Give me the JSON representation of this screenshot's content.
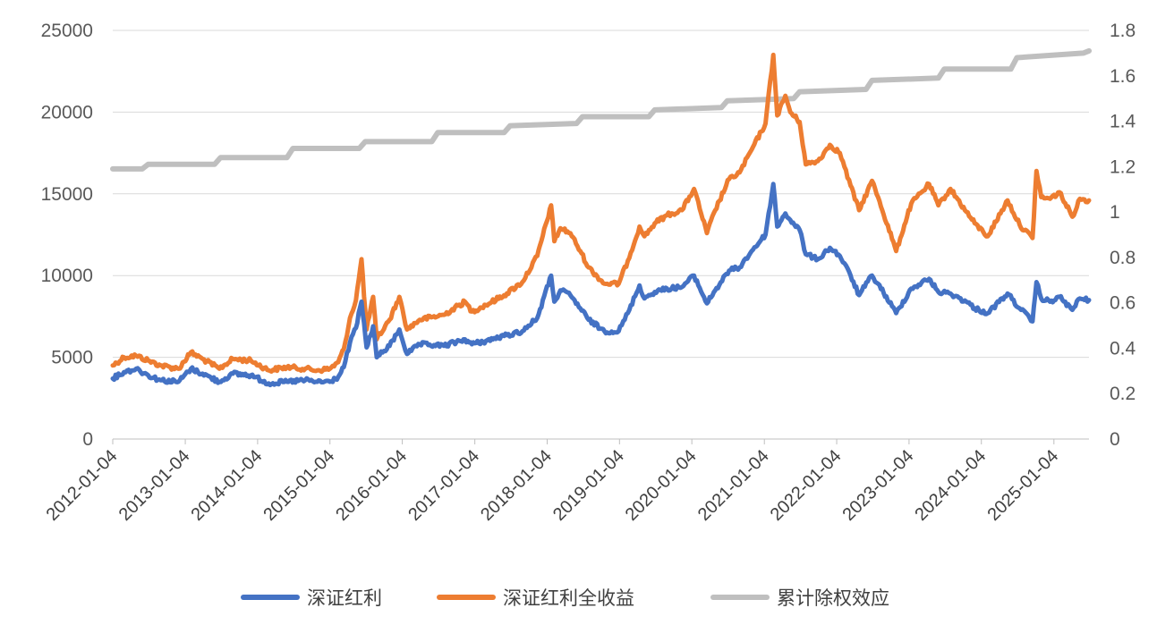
{
  "chart_data": {
    "type": "line",
    "title": "",
    "x_tick_labels": [
      "2012-01-04",
      "2013-01-04",
      "2014-01-04",
      "2015-01-04",
      "2016-01-04",
      "2017-01-04",
      "2018-01-04",
      "2019-01-04",
      "2020-01-04",
      "2021-01-04",
      "2022-01-04",
      "2023-01-04",
      "2024-01-04",
      "2025-01-04"
    ],
    "left_axis": {
      "ylim": [
        0,
        25000
      ],
      "ticks": [
        "0",
        "5000",
        "10000",
        "15000",
        "20000",
        "25000"
      ]
    },
    "right_axis": {
      "ylim": [
        0,
        1.8
      ],
      "ticks": [
        "0",
        "0.2",
        "0.4",
        "0.6",
        "0.8",
        "1",
        "1.2",
        "1.4",
        "1.6",
        "1.8"
      ]
    },
    "grid": "horizontal",
    "legend_position": "bottom",
    "series": [
      {
        "name": "深证红利",
        "color": "#4472C4",
        "axis": "left",
        "points": [
          [
            "2012-01-04",
            3700
          ],
          [
            "2012-03-01",
            4100
          ],
          [
            "2012-05-01",
            4300
          ],
          [
            "2012-07-01",
            3900
          ],
          [
            "2012-09-01",
            3600
          ],
          [
            "2012-12-01",
            3500
          ],
          [
            "2013-02-01",
            4300
          ],
          [
            "2013-04-01",
            4000
          ],
          [
            "2013-06-25",
            3500
          ],
          [
            "2013-09-01",
            4000
          ],
          [
            "2013-12-01",
            3900
          ],
          [
            "2014-03-01",
            3400
          ],
          [
            "2014-06-01",
            3500
          ],
          [
            "2014-09-01",
            3600
          ],
          [
            "2014-11-01",
            3500
          ],
          [
            "2015-01-04",
            3500
          ],
          [
            "2015-02-15",
            3800
          ],
          [
            "2015-03-15",
            4400
          ],
          [
            "2015-04-15",
            5900
          ],
          [
            "2015-05-15",
            6800
          ],
          [
            "2015-06-12",
            8400
          ],
          [
            "2015-07-08",
            5600
          ],
          [
            "2015-08-10",
            6900
          ],
          [
            "2015-08-28",
            5000
          ],
          [
            "2015-11-01",
            5700
          ],
          [
            "2015-12-20",
            6700
          ],
          [
            "2016-01-28",
            5200
          ],
          [
            "2016-04-01",
            5800
          ],
          [
            "2016-08-01",
            5700
          ],
          [
            "2016-11-15",
            6100
          ],
          [
            "2016-12-20",
            5800
          ],
          [
            "2017-03-01",
            6000
          ],
          [
            "2017-06-01",
            6300
          ],
          [
            "2017-09-01",
            6600
          ],
          [
            "2017-11-15",
            7400
          ],
          [
            "2018-01-24",
            10000
          ],
          [
            "2018-02-09",
            8400
          ],
          [
            "2018-03-12",
            9100
          ],
          [
            "2018-05-01",
            8800
          ],
          [
            "2018-06-20",
            8000
          ],
          [
            "2018-08-01",
            7300
          ],
          [
            "2018-10-20",
            6600
          ],
          [
            "2018-12-31",
            6600
          ],
          [
            "2019-02-15",
            7700
          ],
          [
            "2019-04-15",
            9400
          ],
          [
            "2019-05-10",
            8600
          ],
          [
            "2019-07-01",
            9000
          ],
          [
            "2019-09-01",
            9200
          ],
          [
            "2019-11-15",
            9300
          ],
          [
            "2020-01-15",
            10000
          ],
          [
            "2020-03-20",
            8300
          ],
          [
            "2020-05-01",
            9100
          ],
          [
            "2020-07-10",
            10300
          ],
          [
            "2020-09-01",
            10500
          ],
          [
            "2020-11-01",
            11500
          ],
          [
            "2021-01-10",
            12500
          ],
          [
            "2021-02-18",
            15600
          ],
          [
            "2021-03-10",
            13000
          ],
          [
            "2021-04-20",
            13800
          ],
          [
            "2021-05-15",
            13400
          ],
          [
            "2021-07-01",
            12800
          ],
          [
            "2021-08-01",
            11300
          ],
          [
            "2021-10-01",
            11000
          ],
          [
            "2021-12-01",
            11700
          ],
          [
            "2022-01-20",
            11200
          ],
          [
            "2022-03-15",
            10000
          ],
          [
            "2022-04-27",
            8800
          ],
          [
            "2022-07-01",
            10000
          ],
          [
            "2022-08-01",
            9500
          ],
          [
            "2022-10-31",
            7700
          ],
          [
            "2023-01-15",
            9200
          ],
          [
            "2023-04-15",
            9800
          ],
          [
            "2023-06-01",
            9000
          ],
          [
            "2023-08-01",
            8900
          ],
          [
            "2023-10-20",
            8400
          ],
          [
            "2023-12-01",
            8000
          ],
          [
            "2024-02-05",
            7700
          ],
          [
            "2024-05-15",
            8900
          ],
          [
            "2024-07-15",
            8000
          ],
          [
            "2024-09-18",
            7200
          ],
          [
            "2024-10-08",
            9600
          ],
          [
            "2024-11-01",
            8600
          ],
          [
            "2024-12-15",
            8400
          ],
          [
            "2025-02-01",
            8700
          ],
          [
            "2025-04-07",
            7900
          ],
          [
            "2025-05-15",
            8600
          ],
          [
            "2025-06-30",
            8500
          ]
        ]
      },
      {
        "name": "深证红利全收益",
        "color": "#ED7D31",
        "axis": "left",
        "points": [
          [
            "2012-01-04",
            4500
          ],
          [
            "2012-03-01",
            5000
          ],
          [
            "2012-05-01",
            5100
          ],
          [
            "2012-07-01",
            4800
          ],
          [
            "2012-09-01",
            4500
          ],
          [
            "2012-12-01",
            4300
          ],
          [
            "2013-02-01",
            5300
          ],
          [
            "2013-04-01",
            4900
          ],
          [
            "2013-06-25",
            4300
          ],
          [
            "2013-09-01",
            4900
          ],
          [
            "2013-12-01",
            4800
          ],
          [
            "2014-03-01",
            4200
          ],
          [
            "2014-06-01",
            4400
          ],
          [
            "2014-09-01",
            4300
          ],
          [
            "2014-11-01",
            4200
          ],
          [
            "2015-01-04",
            4300
          ],
          [
            "2015-02-15",
            4700
          ],
          [
            "2015-03-15",
            5500
          ],
          [
            "2015-04-15",
            7400
          ],
          [
            "2015-05-15",
            8500
          ],
          [
            "2015-06-12",
            11000
          ],
          [
            "2015-07-08",
            6700
          ],
          [
            "2015-08-10",
            8700
          ],
          [
            "2015-08-28",
            6100
          ],
          [
            "2015-11-01",
            7300
          ],
          [
            "2015-12-20",
            8700
          ],
          [
            "2016-01-28",
            6700
          ],
          [
            "2016-04-01",
            7300
          ],
          [
            "2016-08-01",
            7600
          ],
          [
            "2016-11-15",
            8400
          ],
          [
            "2016-12-20",
            7800
          ],
          [
            "2017-03-01",
            8200
          ],
          [
            "2017-06-01",
            8800
          ],
          [
            "2017-09-01",
            9600
          ],
          [
            "2017-11-15",
            11200
          ],
          [
            "2018-01-24",
            14300
          ],
          [
            "2018-02-09",
            12100
          ],
          [
            "2018-03-12",
            12900
          ],
          [
            "2018-05-01",
            12600
          ],
          [
            "2018-06-20",
            11500
          ],
          [
            "2018-08-01",
            10500
          ],
          [
            "2018-10-20",
            9500
          ],
          [
            "2018-12-31",
            9500
          ],
          [
            "2019-02-15",
            10900
          ],
          [
            "2019-04-15",
            13000
          ],
          [
            "2019-05-10",
            12400
          ],
          [
            "2019-07-01",
            13200
          ],
          [
            "2019-09-01",
            13700
          ],
          [
            "2019-11-15",
            14000
          ],
          [
            "2020-01-15",
            15300
          ],
          [
            "2020-03-20",
            12600
          ],
          [
            "2020-05-01",
            14000
          ],
          [
            "2020-07-10",
            15900
          ],
          [
            "2020-09-01",
            16300
          ],
          [
            "2020-11-01",
            17700
          ],
          [
            "2021-01-10",
            19300
          ],
          [
            "2021-02-18",
            23500
          ],
          [
            "2021-03-10",
            19800
          ],
          [
            "2021-04-20",
            21000
          ],
          [
            "2021-05-15",
            20000
          ],
          [
            "2021-07-01",
            19400
          ],
          [
            "2021-08-01",
            16800
          ],
          [
            "2021-10-01",
            17000
          ],
          [
            "2021-12-01",
            18000
          ],
          [
            "2022-01-20",
            17500
          ],
          [
            "2022-03-15",
            15500
          ],
          [
            "2022-04-27",
            14000
          ],
          [
            "2022-07-01",
            15800
          ],
          [
            "2022-08-01",
            14800
          ],
          [
            "2022-10-31",
            11500
          ],
          [
            "2023-01-15",
            14400
          ],
          [
            "2023-04-15",
            15600
          ],
          [
            "2023-06-01",
            14300
          ],
          [
            "2023-08-01",
            15300
          ],
          [
            "2023-10-20",
            13900
          ],
          [
            "2023-12-01",
            13200
          ],
          [
            "2024-02-05",
            12400
          ],
          [
            "2024-05-15",
            14600
          ],
          [
            "2024-07-15",
            13100
          ],
          [
            "2024-09-18",
            12300
          ],
          [
            "2024-10-08",
            16400
          ],
          [
            "2024-11-01",
            14800
          ],
          [
            "2024-12-15",
            14700
          ],
          [
            "2025-02-01",
            15100
          ],
          [
            "2025-04-07",
            13600
          ],
          [
            "2025-05-15",
            14700
          ],
          [
            "2025-06-30",
            14600
          ]
        ]
      },
      {
        "name": "累计除权效应",
        "color": "#BFBFBF",
        "axis": "right",
        "points": [
          [
            "2012-01-04",
            1.19
          ],
          [
            "2012-06-01",
            1.19
          ],
          [
            "2012-07-01",
            1.21
          ],
          [
            "2013-06-01",
            1.21
          ],
          [
            "2013-07-01",
            1.24
          ],
          [
            "2014-06-01",
            1.24
          ],
          [
            "2014-07-01",
            1.28
          ],
          [
            "2015-06-01",
            1.28
          ],
          [
            "2015-07-01",
            1.31
          ],
          [
            "2016-06-01",
            1.31
          ],
          [
            "2016-07-01",
            1.35
          ],
          [
            "2017-06-01",
            1.35
          ],
          [
            "2017-07-01",
            1.38
          ],
          [
            "2018-06-01",
            1.39
          ],
          [
            "2018-07-01",
            1.42
          ],
          [
            "2019-06-01",
            1.42
          ],
          [
            "2019-07-01",
            1.45
          ],
          [
            "2020-06-01",
            1.46
          ],
          [
            "2020-07-01",
            1.49
          ],
          [
            "2021-06-01",
            1.5
          ],
          [
            "2021-07-01",
            1.53
          ],
          [
            "2022-06-01",
            1.54
          ],
          [
            "2022-07-01",
            1.58
          ],
          [
            "2023-06-01",
            1.59
          ],
          [
            "2023-07-01",
            1.63
          ],
          [
            "2024-06-01",
            1.63
          ],
          [
            "2024-07-01",
            1.68
          ],
          [
            "2025-06-01",
            1.7
          ],
          [
            "2025-06-30",
            1.71
          ]
        ]
      }
    ]
  }
}
